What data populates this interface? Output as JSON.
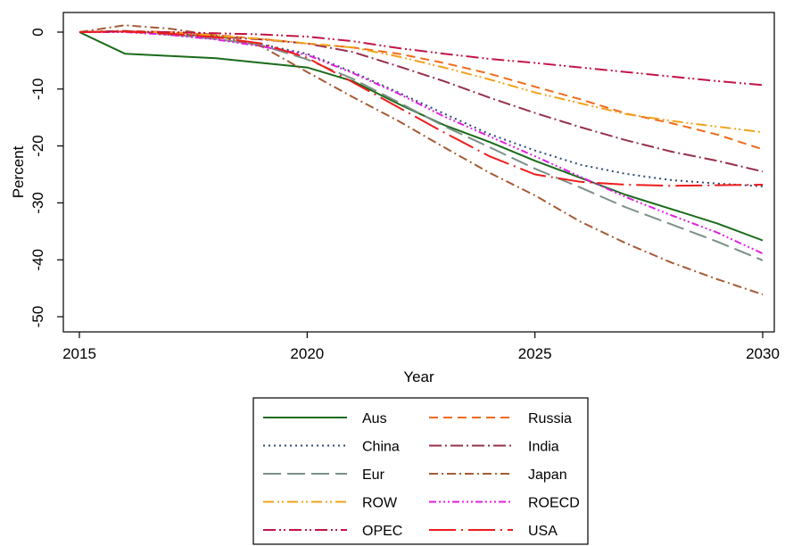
{
  "chart_data": {
    "type": "line",
    "title": "",
    "xlabel": "Year",
    "ylabel": "Percent",
    "xlim": [
      2015,
      2030
    ],
    "ylim": [
      -52,
      4
    ],
    "x_ticks": [
      2015,
      2020,
      2025,
      2030
    ],
    "y_ticks": [
      0,
      -10,
      -20,
      -30,
      -40,
      -50
    ],
    "grid": false,
    "legend_position": "bottom-center",
    "x": [
      2015,
      2016,
      2017,
      2018,
      2019,
      2020,
      2021,
      2022,
      2023,
      2024,
      2025,
      2026,
      2027,
      2028,
      2029,
      2030
    ],
    "series": [
      {
        "name": "Aus",
        "color": "#1a6b1a",
        "dash": "",
        "values": [
          0,
          -3.8,
          -4.2,
          -4.6,
          -5.4,
          -6.2,
          -8.6,
          -12.6,
          -16.3,
          -19.3,
          -22.6,
          -25.6,
          -28.6,
          -31.1,
          -33.6,
          -36.6
        ]
      },
      {
        "name": "Russia",
        "color": "#f06a1c",
        "dash": "10,6",
        "values": [
          0,
          0.2,
          0.0,
          -0.5,
          -1.2,
          -2.0,
          -2.7,
          -3.8,
          -5.4,
          -7.3,
          -9.6,
          -11.8,
          -14.3,
          -16.0,
          -18.0,
          -20.6
        ]
      },
      {
        "name": "China",
        "color": "#2c4a74",
        "dash": "2,4",
        "values": [
          0,
          0.2,
          -0.5,
          -1.2,
          -2.2,
          -3.8,
          -7.0,
          -10.6,
          -14.3,
          -17.9,
          -20.8,
          -23.3,
          -24.9,
          -26.0,
          -26.6,
          -27.1
        ]
      },
      {
        "name": "India",
        "color": "#96304a",
        "dash": "14,4,2,4",
        "values": [
          0,
          0.2,
          -0.3,
          -0.8,
          -1.3,
          -2.0,
          -3.5,
          -6.0,
          -8.6,
          -11.5,
          -14.2,
          -16.7,
          -19.0,
          -21.0,
          -22.6,
          -24.5
        ]
      },
      {
        "name": "Eur",
        "color": "#7a9088",
        "dash": "20,7",
        "values": [
          0,
          0.1,
          -0.4,
          -1.2,
          -2.3,
          -4.8,
          -8.2,
          -12.3,
          -16.5,
          -20.2,
          -24.0,
          -27.3,
          -30.8,
          -33.8,
          -36.8,
          -40.1
        ]
      },
      {
        "name": "Japan",
        "color": "#a65a36",
        "dash": "10,4,2,4",
        "values": [
          0,
          1.2,
          0.6,
          -0.6,
          -2.5,
          -7.0,
          -11.4,
          -15.6,
          -20.2,
          -24.7,
          -28.7,
          -33.3,
          -37.1,
          -40.5,
          -43.4,
          -46.1
        ]
      },
      {
        "name": "ROW",
        "color": "#f2a21b",
        "dash": "12,4,2,3,2,4",
        "values": [
          0,
          0.1,
          -0.1,
          -0.6,
          -1.2,
          -2.0,
          -2.7,
          -4.3,
          -6.2,
          -8.3,
          -10.6,
          -12.5,
          -14.4,
          -15.6,
          -16.6,
          -17.6
        ]
      },
      {
        "name": "ROECD",
        "color": "#e11ee1",
        "dash": "8,3,2,3,2,3,2,3",
        "values": [
          0,
          0.0,
          -0.5,
          -1.3,
          -2.5,
          -4.0,
          -7.2,
          -10.8,
          -14.8,
          -18.3,
          -21.8,
          -25.4,
          -29.0,
          -32.2,
          -35.2,
          -38.9
        ]
      },
      {
        "name": "OPEC",
        "color": "#c21447",
        "dash": "14,4,2,3,2,4",
        "values": [
          0,
          0.1,
          0.0,
          -0.2,
          -0.4,
          -0.8,
          -1.6,
          -2.8,
          -3.8,
          -4.7,
          -5.4,
          -6.2,
          -7.0,
          -7.8,
          -8.6,
          -9.3
        ]
      },
      {
        "name": "USA",
        "color": "#ee1c1c",
        "dash": "30,6,2,6",
        "values": [
          0,
          0.1,
          -0.3,
          -0.9,
          -2.0,
          -4.5,
          -8.8,
          -13.2,
          -17.6,
          -21.8,
          -25.0,
          -26.3,
          -26.8,
          -27.0,
          -26.9,
          -26.8
        ]
      }
    ]
  }
}
